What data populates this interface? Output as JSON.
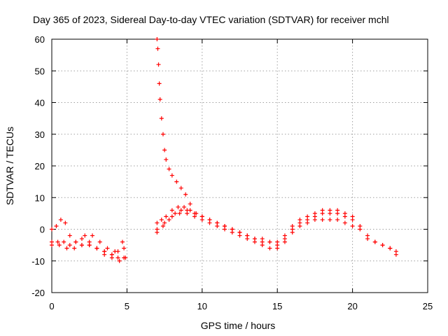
{
  "chart_data": {
    "type": "scatter",
    "title": "Day 365 of 2023, Sidereal Day-to-day VTEC variation (SDTVAR) for receiver mchl",
    "xlabel": "GPS time / hours",
    "ylabel": "SDTVAR / TECUs",
    "xlim": [
      0,
      25
    ],
    "ylim": [
      -20,
      60
    ],
    "xticks": [
      "0",
      "5",
      "10",
      "15",
      "20",
      "25"
    ],
    "yticks": [
      "60",
      "50",
      "40",
      "30",
      "20",
      "10",
      "0",
      "-10",
      "-20"
    ],
    "grid": true,
    "marker": "+",
    "color": "#ff0000",
    "series": [
      {
        "name": "track-early-upper",
        "x": [
          0.0,
          0.3,
          0.6,
          0.9,
          1.2,
          1.6,
          2.0,
          2.5,
          3.0,
          3.5,
          4.0,
          4.4,
          4.8
        ],
        "y": [
          0,
          1,
          3,
          2,
          -2,
          -4,
          -5,
          -5,
          -6,
          -7,
          -8,
          -7,
          -6
        ]
      },
      {
        "name": "track-early-mid",
        "x": [
          0.0,
          0.4,
          0.8,
          1.2,
          1.6,
          2.0,
          2.5,
          3.0,
          3.5,
          4.0,
          4.4,
          4.8
        ],
        "y": [
          -4,
          -4,
          -4,
          -5,
          -4,
          -3,
          -4,
          -6,
          -7,
          -8,
          -9,
          -9
        ]
      },
      {
        "name": "track-early-lower",
        "x": [
          0.0,
          0.5,
          1.0,
          1.5,
          2.0,
          2.5,
          3.0,
          3.5,
          4.0,
          4.5,
          4.9
        ],
        "y": [
          -5,
          -5,
          -6,
          -6,
          -5,
          -5,
          -6,
          -8,
          -9,
          -10,
          -9
        ]
      },
      {
        "name": "track-early-short",
        "x": [
          2.2,
          2.7,
          3.2,
          3.7,
          4.2,
          4.7
        ],
        "y": [
          -2,
          -2,
          -4,
          -6,
          -7,
          -4
        ]
      },
      {
        "name": "track-spike",
        "x": [
          7.0,
          7.05,
          7.1,
          7.15,
          7.2,
          7.3,
          7.4,
          7.5,
          7.6,
          7.8,
          8.0,
          8.3,
          8.6,
          8.9,
          9.2
        ],
        "y": [
          60,
          57,
          52,
          46,
          41,
          35,
          30,
          25,
          22,
          19,
          17,
          15,
          13,
          11,
          8
        ]
      },
      {
        "name": "track-day-a",
        "x": [
          7.0,
          7.3,
          7.6,
          8.0,
          8.4,
          8.8,
          9.2,
          9.6,
          10.0,
          10.5,
          11.0,
          11.5,
          12.0,
          12.5,
          13.0,
          13.5,
          14.0,
          14.5,
          15.0,
          15.5,
          16.0,
          16.5,
          17.0,
          17.5,
          18.0,
          18.5,
          19.0,
          19.5,
          20.0,
          20.5,
          21.0,
          21.5,
          22.0,
          22.5,
          22.9
        ],
        "y": [
          2,
          3,
          4,
          6,
          7,
          7,
          6,
          5,
          4,
          3,
          2,
          1,
          0,
          -1,
          -2,
          -3,
          -3,
          -4,
          -4,
          -2,
          1,
          3,
          4,
          5,
          6,
          6,
          6,
          5,
          4,
          1,
          -2,
          -4,
          -5,
          -6,
          -7
        ]
      },
      {
        "name": "track-day-b",
        "x": [
          7.0,
          7.4,
          7.8,
          8.2,
          8.6,
          9.0,
          9.5,
          10.0,
          10.5,
          11.0,
          11.5,
          12.0,
          12.5,
          13.0,
          13.5,
          14.0,
          14.5,
          15.0,
          15.5,
          16.0,
          16.5,
          17.0,
          17.5,
          18.0,
          18.5,
          19.0,
          19.5,
          20.0,
          20.5,
          21.0,
          21.5,
          22.0,
          22.5,
          22.9
        ],
        "y": [
          0,
          1,
          3,
          5,
          6,
          6,
          5,
          4,
          3,
          2,
          1,
          0,
          -1,
          -2,
          -3,
          -4,
          -4,
          -5,
          -3,
          0,
          2,
          3,
          4,
          5,
          5,
          5,
          4,
          3,
          0,
          -3,
          -4,
          -5,
          -6,
          -8
        ]
      },
      {
        "name": "track-day-c",
        "x": [
          7.0,
          7.5,
          8.0,
          8.5,
          9.0,
          9.5,
          10.0,
          10.5,
          11.0,
          11.5,
          12.0,
          12.5,
          13.0,
          13.5,
          14.0,
          14.5,
          15.0,
          15.5,
          16.0,
          16.5,
          17.0,
          17.5,
          18.0,
          18.5,
          19.0,
          19.5,
          20.0
        ],
        "y": [
          -1,
          2,
          4,
          5,
          5,
          4,
          3,
          2,
          1,
          0,
          -1,
          -2,
          -3,
          -4,
          -5,
          -6,
          -6,
          -4,
          -1,
          1,
          2,
          3,
          3,
          3,
          3,
          2,
          1
        ]
      }
    ]
  }
}
